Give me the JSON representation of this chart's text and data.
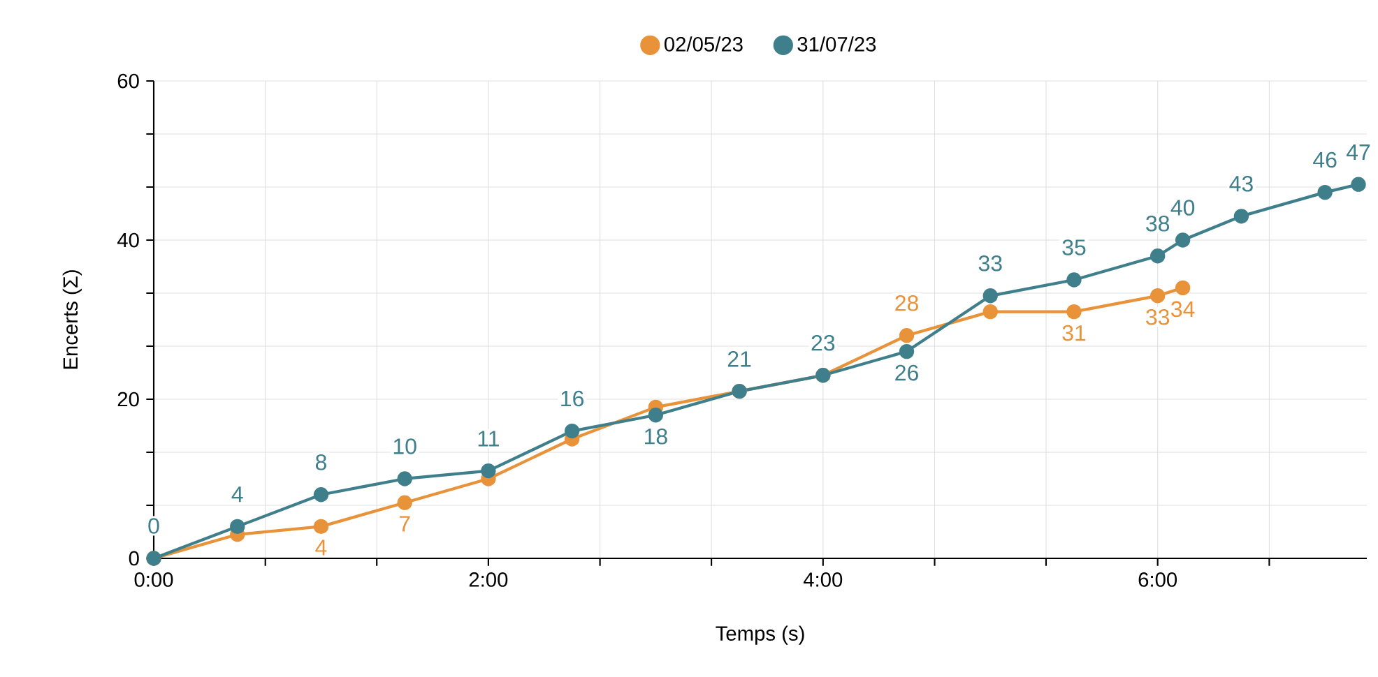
{
  "chart_data": {
    "type": "line",
    "xlabel": "Temps (s)",
    "ylabel": "Encerts (Σ)",
    "xlim": [
      0,
      7.25
    ],
    "ylim": [
      0,
      60
    ],
    "xticks": [
      {
        "value": 0,
        "label": "0:00"
      },
      {
        "value": 0.667,
        "label": null
      },
      {
        "value": 1.333,
        "label": null
      },
      {
        "value": 2,
        "label": "2:00"
      },
      {
        "value": 2.667,
        "label": null
      },
      {
        "value": 3.333,
        "label": null
      },
      {
        "value": 4,
        "label": "4:00"
      },
      {
        "value": 4.667,
        "label": null
      },
      {
        "value": 5.333,
        "label": null
      },
      {
        "value": 6,
        "label": "6:00"
      },
      {
        "value": 6.667,
        "label": null
      }
    ],
    "yticks": [
      0,
      {
        "value": 6.667,
        "label": null
      },
      {
        "value": 13.333,
        "label": null
      },
      20,
      {
        "value": 26.667,
        "label": null
      },
      {
        "value": 33.333,
        "label": null
      },
      40,
      {
        "value": 46.667,
        "label": null
      },
      {
        "value": 53.333,
        "label": null
      },
      60
    ],
    "grid": true,
    "legend": "top",
    "marker": "circle",
    "line_style": "solid",
    "series": [
      {
        "name": "02/05/23",
        "color": "#e8923a",
        "x": [
          0,
          0.5,
          1,
          1.5,
          2,
          2.5,
          3,
          3.5,
          4,
          4.5,
          5,
          5.5,
          6,
          6.15
        ],
        "values": [
          0,
          3,
          4,
          7,
          10,
          15,
          19,
          21,
          23,
          28,
          31,
          31,
          33,
          34
        ],
        "value_labels": [
          null,
          null,
          "4",
          "7",
          null,
          null,
          null,
          null,
          null,
          "28",
          null,
          "31",
          "33",
          "34"
        ]
      },
      {
        "name": "31/07/23",
        "color": "#3f7f8c",
        "x": [
          0,
          0.5,
          1,
          1.5,
          2,
          2.5,
          3,
          3.5,
          4,
          4.5,
          5,
          5.5,
          6,
          6.15,
          6.5,
          7,
          7.2
        ],
        "values": [
          0,
          4,
          8,
          10,
          11,
          16,
          18,
          21,
          23,
          26,
          33,
          35,
          38,
          40,
          43,
          46,
          47
        ],
        "value_labels": [
          "0",
          "4",
          "8",
          "10",
          "11",
          "16",
          "18",
          "21",
          "23",
          "26",
          "33",
          "35",
          "38",
          "40",
          "43",
          "46",
          "47"
        ]
      }
    ]
  }
}
